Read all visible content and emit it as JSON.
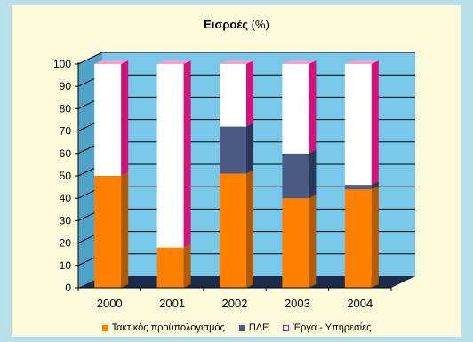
{
  "chart_data": {
    "type": "bar",
    "stacked": true,
    "three_d": true,
    "title_bold": "Εισροές",
    "title_rest": "(%)",
    "categories": [
      "2000",
      "2001",
      "2002",
      "2003",
      "2004"
    ],
    "series": [
      {
        "name": "Τακτικός προϋπολογισμός",
        "values": [
          50,
          18,
          51,
          40,
          44
        ],
        "color": "#ff8000",
        "side_color": "#b35900"
      },
      {
        "name": "ΠΔΕ",
        "values": [
          0,
          0,
          21,
          20,
          2
        ],
        "color": "#4c5a86",
        "side_color": "#2d3658"
      },
      {
        "name": "Έργα - Υπηρεσίες",
        "values": [
          50,
          82,
          28,
          40,
          54
        ],
        "color": "#ffffff",
        "side_color": "#d4137a",
        "legend_border": "#d4137a"
      }
    ],
    "ylim": [
      0,
      100
    ],
    "yticks": [
      "0",
      "10",
      "20",
      "30",
      "40",
      "50",
      "60",
      "70",
      "80",
      "90",
      "100"
    ],
    "grid": true,
    "legend_position": "bottom",
    "colors": {
      "plot_back": "#79c8ea",
      "plot_left_wall": "#4fa3c9",
      "floor": "#1c2a4c",
      "gridline": "#000000",
      "top_face": "#f2a0cf"
    }
  }
}
